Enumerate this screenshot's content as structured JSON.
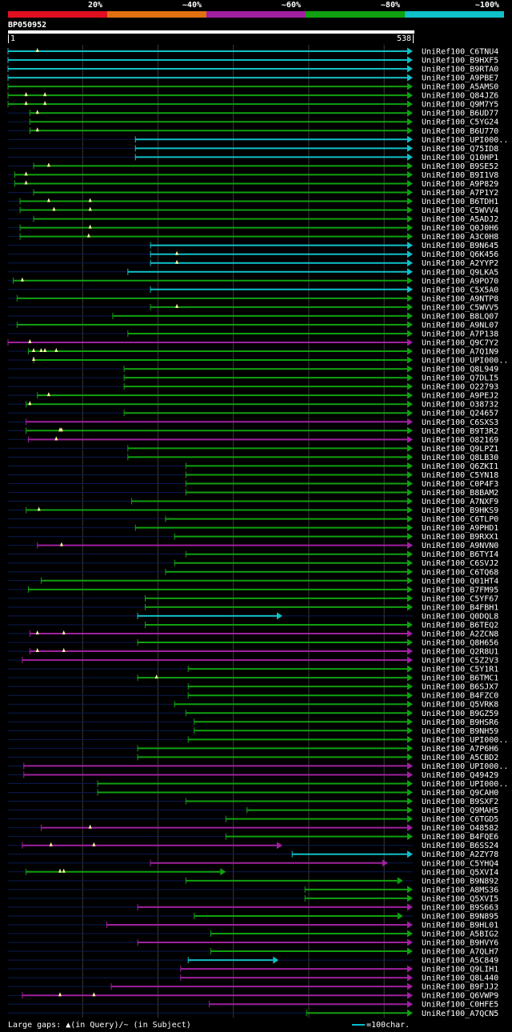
{
  "legend": {
    "labels": [
      "20%",
      "~40%",
      "~60%",
      "~80%",
      "~100%"
    ],
    "colors": [
      "#e01020",
      "#e07010",
      "#a020a0",
      "#10a010",
      "#10c0c8"
    ]
  },
  "query": {
    "id": "BP050952",
    "start": "1",
    "end": "538"
  },
  "footer": {
    "gaps_text": "Large gaps: ▲(in Query)/~ (in Subject)",
    "scale_text": "=100char."
  },
  "chart_data": {
    "type": "alignment-overview",
    "title": "BP050952",
    "query_length": 538,
    "x_range": [
      1,
      538
    ],
    "gridlines": [
      100,
      200,
      300,
      400,
      500
    ],
    "identity_bins": [
      "20%",
      "~40%",
      "~60%",
      "~80%",
      "~100%"
    ],
    "hits": [
      {
        "name": "UniRef100_C6TNU4",
        "start": 1,
        "end": 538,
        "id": "~100%",
        "gaps": [
          40
        ]
      },
      {
        "name": "UniRef100_B9HXF5",
        "start": 1,
        "end": 538,
        "id": "~100%",
        "gaps": []
      },
      {
        "name": "UniRef100_B9RTA0",
        "start": 1,
        "end": 538,
        "id": "~100%",
        "gaps": []
      },
      {
        "name": "UniRef100_A9PBE7",
        "start": 1,
        "end": 538,
        "id": "~100%",
        "gaps": []
      },
      {
        "name": "UniRef100_A5AMS0",
        "start": 1,
        "end": 538,
        "id": "~80%",
        "gaps": []
      },
      {
        "name": "UniRef100_Q84JZ6",
        "start": 1,
        "end": 538,
        "id": "~80%",
        "gaps": [
          25,
          50
        ]
      },
      {
        "name": "UniRef100_Q9M7Y5",
        "start": 1,
        "end": 538,
        "id": "~80%",
        "gaps": [
          25,
          50
        ]
      },
      {
        "name": "UniRef100_B6UD77",
        "start": 30,
        "end": 538,
        "id": "~80%",
        "gaps": [
          40
        ]
      },
      {
        "name": "UniRef100_C5YG24",
        "start": 30,
        "end": 538,
        "id": "~80%",
        "gaps": []
      },
      {
        "name": "UniRef100_B6U770",
        "start": 30,
        "end": 538,
        "id": "~80%",
        "gaps": [
          40
        ]
      },
      {
        "name": "UniRef100_UPI000..",
        "start": 170,
        "end": 538,
        "id": "~100%",
        "gaps": []
      },
      {
        "name": "UniRef100_Q75ID8",
        "start": 170,
        "end": 538,
        "id": "~100%",
        "gaps": []
      },
      {
        "name": "UniRef100_Q10HP1",
        "start": 170,
        "end": 538,
        "id": "~100%",
        "gaps": []
      },
      {
        "name": "UniRef100_B9SE52",
        "start": 35,
        "end": 538,
        "id": "~80%",
        "gaps": [
          55
        ]
      },
      {
        "name": "UniRef100_B9I1V8",
        "start": 10,
        "end": 538,
        "id": "~80%",
        "gaps": [
          25
        ]
      },
      {
        "name": "UniRef100_A9P829",
        "start": 10,
        "end": 538,
        "id": "~80%",
        "gaps": [
          25
        ]
      },
      {
        "name": "UniRef100_A7P1Y2",
        "start": 35,
        "end": 538,
        "id": "~80%",
        "gaps": []
      },
      {
        "name": "UniRef100_B6TDH1",
        "start": 17,
        "end": 538,
        "id": "~80%",
        "gaps": [
          55,
          110
        ]
      },
      {
        "name": "UniRef100_C5WVV4",
        "start": 17,
        "end": 538,
        "id": "~80%",
        "gaps": [
          62,
          110
        ]
      },
      {
        "name": "UniRef100_A5ADJ2",
        "start": 35,
        "end": 538,
        "id": "~80%",
        "gaps": []
      },
      {
        "name": "UniRef100_Q0J0H6",
        "start": 17,
        "end": 538,
        "id": "~80%",
        "gaps": [
          110
        ]
      },
      {
        "name": "UniRef100_A3C0H8",
        "start": 17,
        "end": 538,
        "id": "~80%",
        "gaps": [
          108
        ]
      },
      {
        "name": "UniRef100_B9N645",
        "start": 190,
        "end": 538,
        "id": "~100%",
        "gaps": []
      },
      {
        "name": "UniRef100_Q6K456",
        "start": 190,
        "end": 538,
        "id": "~100%",
        "gaps": [
          225
        ]
      },
      {
        "name": "UniRef100_A2YYP2",
        "start": 190,
        "end": 538,
        "id": "~100%",
        "gaps": [
          225
        ]
      },
      {
        "name": "UniRef100_Q9LKA5",
        "start": 160,
        "end": 538,
        "id": "~100%",
        "gaps": []
      },
      {
        "name": "UniRef100_A9PO70",
        "start": 8,
        "end": 538,
        "id": "~80%",
        "gaps": [
          20
        ]
      },
      {
        "name": "UniRef100_C5X5A0",
        "start": 190,
        "end": 538,
        "id": "~100%",
        "gaps": []
      },
      {
        "name": "UniRef100_A9NTP8",
        "start": 13,
        "end": 538,
        "id": "~80%",
        "gaps": []
      },
      {
        "name": "UniRef100_C5WVV5",
        "start": 190,
        "end": 538,
        "id": "~80%",
        "gaps": [
          225
        ]
      },
      {
        "name": "UniRef100_B8LQ07",
        "start": 140,
        "end": 538,
        "id": "~80%",
        "gaps": []
      },
      {
        "name": "UniRef100_A9NL07",
        "start": 13,
        "end": 538,
        "id": "~80%",
        "gaps": []
      },
      {
        "name": "UniRef100_A7P138",
        "start": 160,
        "end": 538,
        "id": "~80%",
        "gaps": []
      },
      {
        "name": "UniRef100_Q9C7Y2",
        "start": 1,
        "end": 538,
        "id": "~60%",
        "gaps": [
          30
        ]
      },
      {
        "name": "UniRef100_A7Q1N9",
        "start": 28,
        "end": 538,
        "id": "~80%",
        "gaps": [
          35,
          45,
          50,
          65
        ]
      },
      {
        "name": "UniRef100_UPI000..",
        "start": 35,
        "end": 538,
        "id": "~80%",
        "gaps": [
          35
        ]
      },
      {
        "name": "UniRef100_Q8L949",
        "start": 155,
        "end": 538,
        "id": "~80%",
        "gaps": []
      },
      {
        "name": "UniRef100_Q7DLI5",
        "start": 155,
        "end": 538,
        "id": "~80%",
        "gaps": []
      },
      {
        "name": "UniRef100_O22793",
        "start": 155,
        "end": 538,
        "id": "~80%",
        "gaps": []
      },
      {
        "name": "UniRef100_A9PEJ2",
        "start": 40,
        "end": 538,
        "id": "~80%",
        "gaps": [
          55
        ]
      },
      {
        "name": "UniRef100_O38732",
        "start": 25,
        "end": 538,
        "id": "~80%",
        "gaps": [
          30
        ]
      },
      {
        "name": "UniRef100_Q24657",
        "start": 155,
        "end": 538,
        "id": "~80%",
        "gaps": []
      },
      {
        "name": "UniRef100_C6SXS3",
        "start": 25,
        "end": 538,
        "id": "~60%",
        "gaps": []
      },
      {
        "name": "UniRef100_B9T3R2",
        "start": 25,
        "end": 538,
        "id": "~80%",
        "gaps": [
          70,
          72
        ]
      },
      {
        "name": "UniRef100_O82169",
        "start": 28,
        "end": 538,
        "id": "~60%",
        "gaps": [
          65
        ]
      },
      {
        "name": "UniRef100_Q9LPZ1",
        "start": 160,
        "end": 538,
        "id": "~80%",
        "gaps": []
      },
      {
        "name": "UniRef100_Q8LB30",
        "start": 160,
        "end": 538,
        "id": "~80%",
        "gaps": []
      },
      {
        "name": "UniRef100_Q6ZKI1",
        "start": 237,
        "end": 538,
        "id": "~80%",
        "gaps": []
      },
      {
        "name": "UniRef100_C5YN18",
        "start": 237,
        "end": 538,
        "id": "~80%",
        "gaps": []
      },
      {
        "name": "UniRef100_C0P4F3",
        "start": 237,
        "end": 538,
        "id": "~80%",
        "gaps": []
      },
      {
        "name": "UniRef100_B8BAM2",
        "start": 237,
        "end": 538,
        "id": "~80%",
        "gaps": []
      },
      {
        "name": "UniRef100_A7NXF9",
        "start": 165,
        "end": 538,
        "id": "~80%",
        "gaps": []
      },
      {
        "name": "UniRef100_B9HKS9",
        "start": 25,
        "end": 538,
        "id": "~80%",
        "gaps": [
          42
        ]
      },
      {
        "name": "UniRef100_C6TLP0",
        "start": 210,
        "end": 538,
        "id": "~80%",
        "gaps": []
      },
      {
        "name": "UniRef100_A9PHD1",
        "start": 170,
        "end": 538,
        "id": "~80%",
        "gaps": []
      },
      {
        "name": "UniRef100_B9RXX1",
        "start": 222,
        "end": 538,
        "id": "~80%",
        "gaps": []
      },
      {
        "name": "UniRef100_A9NVN0",
        "start": 40,
        "end": 538,
        "id": "~60%",
        "gaps": [
          72
        ]
      },
      {
        "name": "UniRef100_B6TYI4",
        "start": 237,
        "end": 538,
        "id": "~80%",
        "gaps": []
      },
      {
        "name": "UniRef100_C6SVJ2",
        "start": 222,
        "end": 538,
        "id": "~80%",
        "gaps": []
      },
      {
        "name": "UniRef100_C6TQ68",
        "start": 210,
        "end": 538,
        "id": "~80%",
        "gaps": []
      },
      {
        "name": "UniRef100_Q01HT4",
        "start": 45,
        "end": 538,
        "id": "~80%",
        "gaps": []
      },
      {
        "name": "UniRef100_B7FM95",
        "start": 28,
        "end": 538,
        "id": "~80%",
        "gaps": []
      },
      {
        "name": "UniRef100_C5YF67",
        "start": 183,
        "end": 538,
        "id": "~80%",
        "gaps": []
      },
      {
        "name": "UniRef100_B4FBH1",
        "start": 183,
        "end": 538,
        "id": "~80%",
        "gaps": []
      },
      {
        "name": "UniRef100_Q0DQL8",
        "start": 173,
        "end": 365,
        "id": "~100%",
        "gaps": []
      },
      {
        "name": "UniRef100_B6TEQ2",
        "start": 183,
        "end": 538,
        "id": "~80%",
        "gaps": []
      },
      {
        "name": "UniRef100_A2ZCN8",
        "start": 30,
        "end": 538,
        "id": "~60%",
        "gaps": [
          40,
          75
        ]
      },
      {
        "name": "UniRef100_Q8H656",
        "start": 173,
        "end": 538,
        "id": "~80%",
        "gaps": []
      },
      {
        "name": "UniRef100_Q2R8U1",
        "start": 30,
        "end": 538,
        "id": "~60%",
        "gaps": [
          40,
          75
        ]
      },
      {
        "name": "UniRef100_C5Z2V3",
        "start": 20,
        "end": 538,
        "id": "~60%",
        "gaps": []
      },
      {
        "name": "UniRef100_C5Y1R1",
        "start": 240,
        "end": 538,
        "id": "~80%",
        "gaps": []
      },
      {
        "name": "UniRef100_B6TMC1",
        "start": 173,
        "end": 538,
        "id": "~80%",
        "gaps": [
          198
        ]
      },
      {
        "name": "UniRef100_B6SJX7",
        "start": 240,
        "end": 538,
        "id": "~80%",
        "gaps": []
      },
      {
        "name": "UniRef100_B4FZC0",
        "start": 240,
        "end": 538,
        "id": "~80%",
        "gaps": []
      },
      {
        "name": "UniRef100_Q5VRK8",
        "start": 222,
        "end": 538,
        "id": "~80%",
        "gaps": []
      },
      {
        "name": "UniRef100_B9GZ59",
        "start": 237,
        "end": 538,
        "id": "~80%",
        "gaps": []
      },
      {
        "name": "UniRef100_B9HSR6",
        "start": 248,
        "end": 538,
        "id": "~80%",
        "gaps": []
      },
      {
        "name": "UniRef100_B9NH59",
        "start": 248,
        "end": 538,
        "id": "~80%",
        "gaps": []
      },
      {
        "name": "UniRef100_UPI000..",
        "start": 240,
        "end": 538,
        "id": "~80%",
        "gaps": []
      },
      {
        "name": "UniRef100_A7P6H6",
        "start": 173,
        "end": 538,
        "id": "~80%",
        "gaps": []
      },
      {
        "name": "UniRef100_A5CBD2",
        "start": 173,
        "end": 538,
        "id": "~80%",
        "gaps": []
      },
      {
        "name": "UniRef100_UPI000..",
        "start": 22,
        "end": 538,
        "id": "~60%",
        "gaps": []
      },
      {
        "name": "UniRef100_Q49429",
        "start": 22,
        "end": 538,
        "id": "~60%",
        "gaps": []
      },
      {
        "name": "UniRef100_UPI000..",
        "start": 120,
        "end": 538,
        "id": "~80%",
        "gaps": []
      },
      {
        "name": "UniRef100_Q9CAH0",
        "start": 120,
        "end": 538,
        "id": "~80%",
        "gaps": []
      },
      {
        "name": "UniRef100_B9SXF2",
        "start": 237,
        "end": 538,
        "id": "~80%",
        "gaps": []
      },
      {
        "name": "UniRef100_Q9MAH5",
        "start": 318,
        "end": 538,
        "id": "~80%",
        "gaps": []
      },
      {
        "name": "UniRef100_C6TGD5",
        "start": 290,
        "end": 538,
        "id": "~80%",
        "gaps": []
      },
      {
        "name": "UniRef100_O48582",
        "start": 45,
        "end": 538,
        "id": "~60%",
        "gaps": [
          110
        ]
      },
      {
        "name": "UniRef100_B4FQE6",
        "start": 290,
        "end": 538,
        "id": "~80%",
        "gaps": []
      },
      {
        "name": "UniRef100_B6SS24",
        "start": 20,
        "end": 365,
        "id": "~60%",
        "gaps": [
          58,
          115
        ]
      },
      {
        "name": "UniRef100_A2ZY78",
        "start": 378,
        "end": 538,
        "id": "~100%",
        "gaps": []
      },
      {
        "name": "UniRef100_C5YHQ4",
        "start": 190,
        "end": 505,
        "id": "~60%",
        "gaps": []
      },
      {
        "name": "UniRef100_Q5XVI4",
        "start": 25,
        "end": 290,
        "id": "~80%",
        "gaps": [
          70,
          75
        ]
      },
      {
        "name": "UniRef100_B9N892",
        "start": 237,
        "end": 525,
        "id": "~80%",
        "gaps": []
      },
      {
        "name": "UniRef100_A8MS36",
        "start": 395,
        "end": 538,
        "id": "~80%",
        "gaps": []
      },
      {
        "name": "UniRef100_Q5XVI5",
        "start": 395,
        "end": 538,
        "id": "~80%",
        "gaps": []
      },
      {
        "name": "UniRef100_B9S663",
        "start": 173,
        "end": 538,
        "id": "~60%",
        "gaps": []
      },
      {
        "name": "UniRef100_B9N895",
        "start": 248,
        "end": 525,
        "id": "~80%",
        "gaps": []
      },
      {
        "name": "UniRef100_B9HL01",
        "start": 132,
        "end": 538,
        "id": "~60%",
        "gaps": []
      },
      {
        "name": "UniRef100_A5BIG2",
        "start": 270,
        "end": 538,
        "id": "~80%",
        "gaps": []
      },
      {
        "name": "UniRef100_B9HVY6",
        "start": 173,
        "end": 538,
        "id": "~60%",
        "gaps": []
      },
      {
        "name": "UniRef100_A7QLH7",
        "start": 270,
        "end": 538,
        "id": "~80%",
        "gaps": []
      },
      {
        "name": "UniRef100_A5C849",
        "start": 240,
        "end": 360,
        "id": "~100%",
        "gaps": []
      },
      {
        "name": "UniRef100_Q9LIH1",
        "start": 230,
        "end": 538,
        "id": "~60%",
        "gaps": []
      },
      {
        "name": "UniRef100_Q8L440",
        "start": 230,
        "end": 538,
        "id": "~60%",
        "gaps": []
      },
      {
        "name": "UniRef100_B9FJJ2",
        "start": 138,
        "end": 538,
        "id": "~60%",
        "gaps": []
      },
      {
        "name": "UniRef100_Q6VWP9",
        "start": 20,
        "end": 538,
        "id": "~60%",
        "gaps": [
          70,
          115
        ]
      },
      {
        "name": "UniRef100_C0HFE5",
        "start": 268,
        "end": 538,
        "id": "~60%",
        "gaps": []
      },
      {
        "name": "UniRef100_A7QCN5",
        "start": 397,
        "end": 538,
        "id": "~80%",
        "gaps": []
      }
    ]
  }
}
